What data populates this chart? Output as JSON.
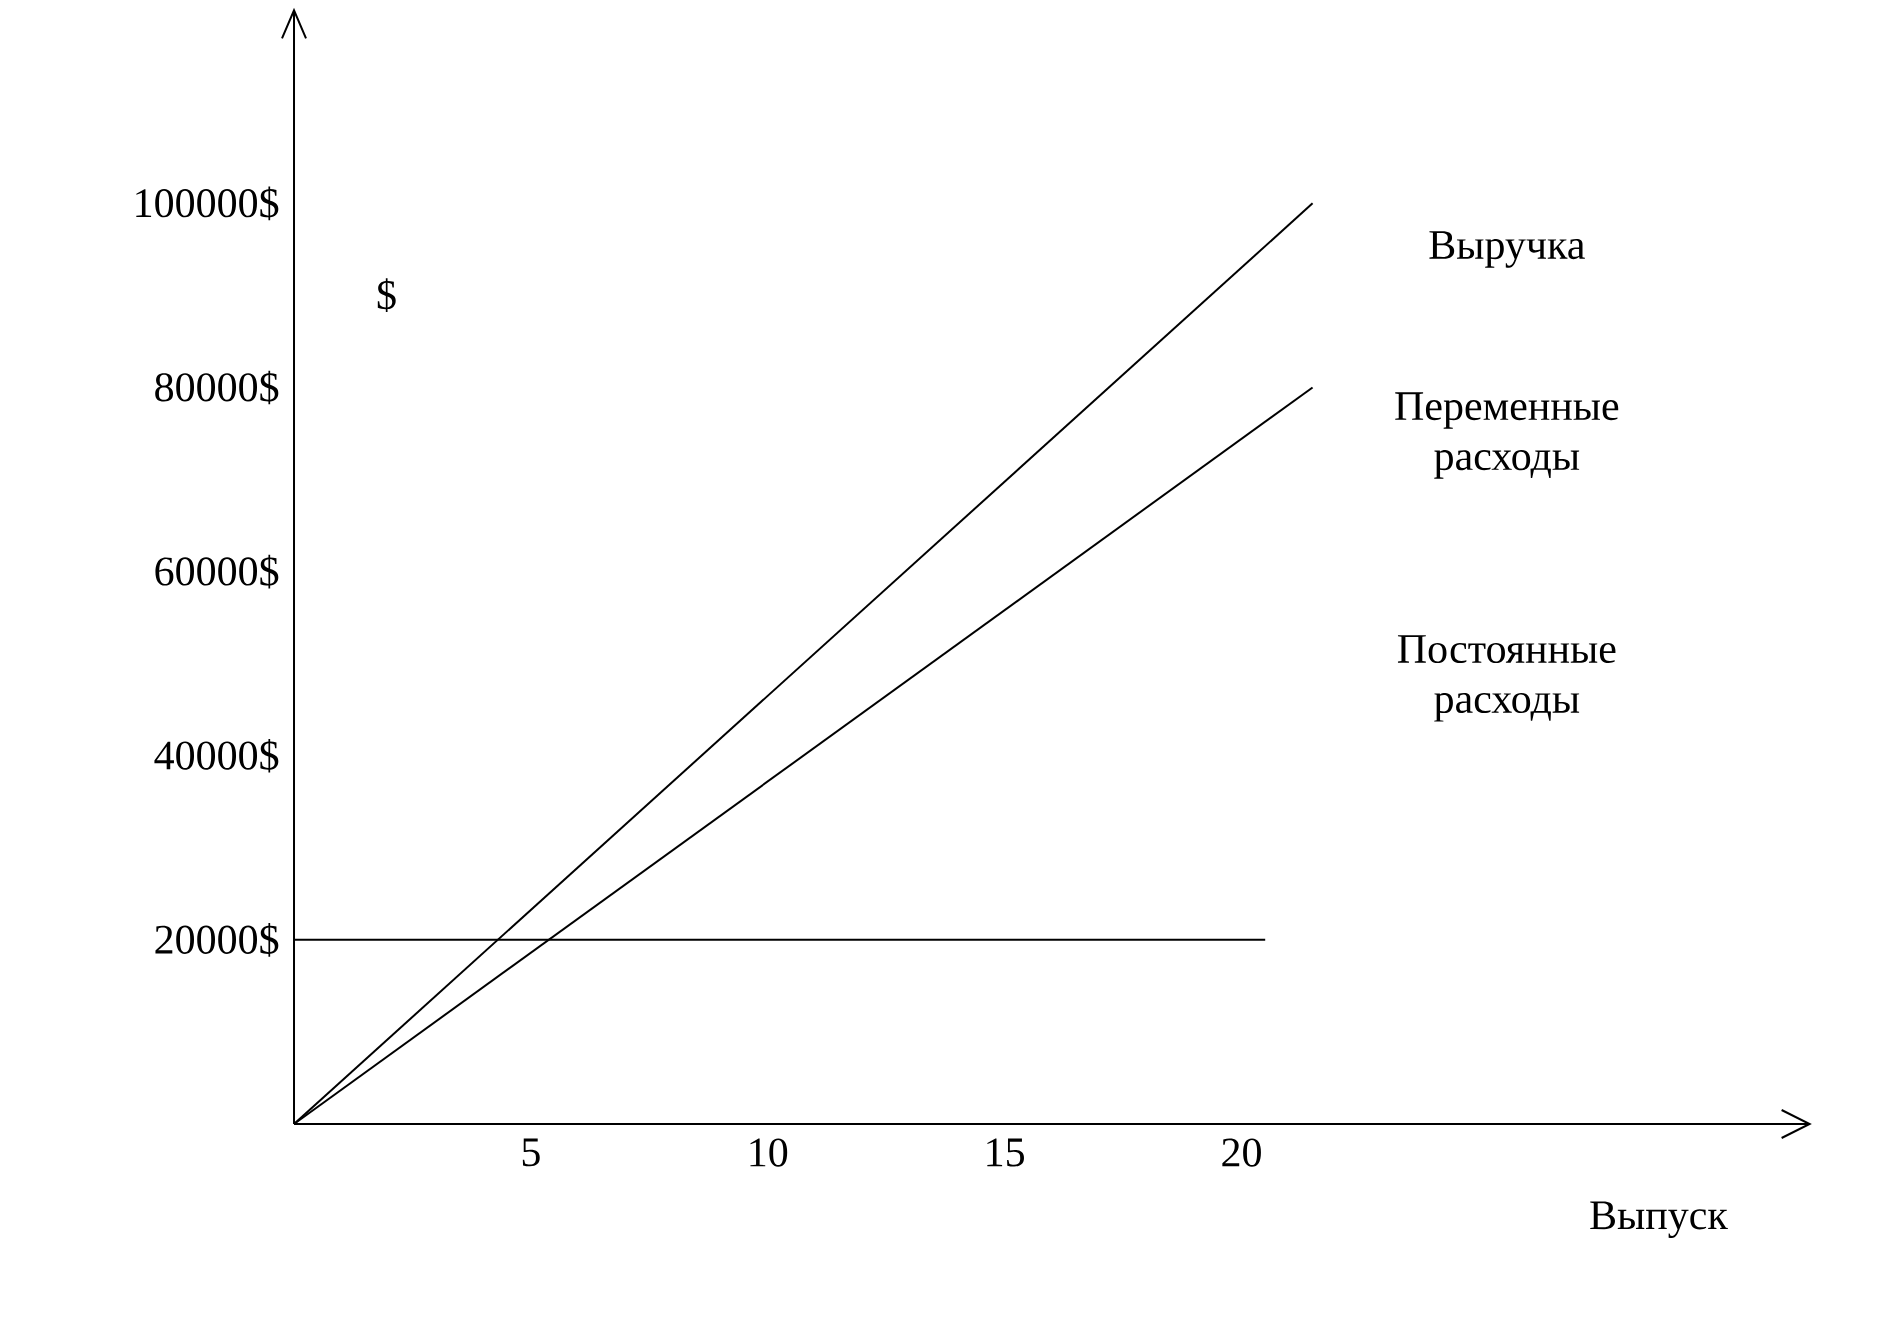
{
  "chart_data": {
    "type": "line",
    "xlabel": "Выпуск",
    "ylabel": "$",
    "series": [
      {
        "name": "Выручка",
        "color": "#000000",
        "x": [
          0,
          21.5
        ],
        "values": [
          0,
          100000
        ]
      },
      {
        "name": "Переменные расходы",
        "color": "#000000",
        "x": [
          0,
          21.5
        ],
        "values": [
          0,
          80000
        ]
      },
      {
        "name": "Постоянные расходы",
        "color": "#000000",
        "x": [
          0,
          20.5
        ],
        "values": [
          20000,
          20000
        ]
      }
    ],
    "xlim": [
      0,
      32
    ],
    "ylim": [
      0,
      121000
    ],
    "xticks": [
      5,
      10,
      15,
      20
    ],
    "yticks": [
      {
        "value": 20000,
        "label": "20000$"
      },
      {
        "value": 40000,
        "label": "40000$"
      },
      {
        "value": 60000,
        "label": "60000$"
      },
      {
        "value": 80000,
        "label": "80000$"
      },
      {
        "value": 100000,
        "label": "100000$"
      }
    ],
    "grid": false,
    "legend": false,
    "marker": "none",
    "line_style": "solid"
  }
}
